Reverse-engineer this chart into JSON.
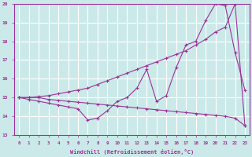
{
  "xlabel": "Windchill (Refroidissement éolien,°C)",
  "xlim": [
    -0.5,
    23.5
  ],
  "ylim": [
    13,
    20
  ],
  "yticks": [
    13,
    14,
    15,
    16,
    17,
    18,
    19,
    20
  ],
  "xticks": [
    0,
    1,
    2,
    3,
    4,
    5,
    6,
    7,
    8,
    9,
    10,
    11,
    12,
    13,
    14,
    15,
    16,
    17,
    18,
    19,
    20,
    21,
    22,
    23
  ],
  "background_color": "#cbe9e9",
  "line_color": "#993399",
  "grid_color": "#ffffff",
  "series": [
    {
      "x": [
        0,
        1,
        2,
        3,
        4,
        5,
        6,
        7,
        8,
        9,
        10,
        11,
        12,
        13,
        14,
        15,
        16,
        17,
        18,
        19,
        20,
        21,
        22,
        23
      ],
      "y": [
        15.0,
        14.9,
        14.8,
        14.7,
        14.6,
        14.5,
        14.4,
        13.8,
        13.9,
        14.3,
        14.8,
        15.0,
        15.5,
        16.5,
        14.8,
        15.1,
        16.6,
        17.8,
        18.0,
        19.1,
        20.0,
        19.9,
        17.4,
        15.4
      ]
    },
    {
      "x": [
        0,
        1,
        2,
        3,
        4,
        5,
        6,
        7,
        8,
        9,
        10,
        11,
        12,
        13,
        14,
        15,
        16,
        17,
        18,
        19,
        20,
        21,
        22,
        23
      ],
      "y": [
        15.0,
        15.0,
        15.05,
        15.1,
        15.2,
        15.3,
        15.4,
        15.5,
        15.7,
        15.9,
        16.1,
        16.3,
        16.5,
        16.7,
        16.9,
        17.1,
        17.3,
        17.5,
        17.8,
        18.1,
        18.5,
        18.75,
        20.0,
        13.5
      ]
    },
    {
      "x": [
        0,
        1,
        2,
        3,
        4,
        5,
        6,
        7,
        8,
        9,
        10,
        11,
        12,
        13,
        14,
        15,
        16,
        17,
        18,
        19,
        20,
        21,
        22,
        23
      ],
      "y": [
        15.0,
        15.0,
        15.0,
        14.9,
        14.85,
        14.8,
        14.75,
        14.7,
        14.65,
        14.6,
        14.55,
        14.5,
        14.45,
        14.4,
        14.35,
        14.3,
        14.25,
        14.2,
        14.15,
        14.1,
        14.05,
        14.0,
        13.9,
        13.5
      ]
    }
  ]
}
